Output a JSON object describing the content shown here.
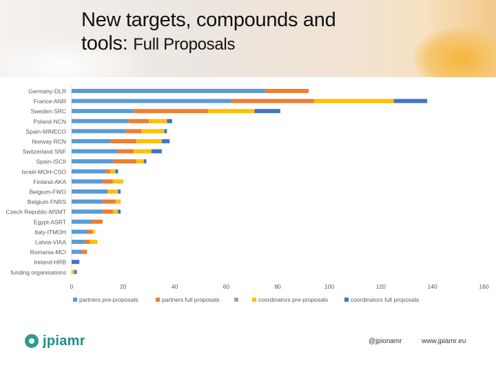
{
  "title_line1": "New targets, compounds and",
  "title_line2a": "tools: ",
  "title_line2b": "Full Proposals",
  "footer": {
    "logo_text": "jpiamr",
    "handle": "@jpionamr",
    "url": "www.jpiamr.eu"
  },
  "colors": {
    "partners_pre": "#5b9bd5",
    "partners_full": "#ed7d31",
    "blank": "#a5a5a5",
    "coord_pre": "#ffc000",
    "coord_full": "#4472c4"
  },
  "chart_data": {
    "type": "bar",
    "orientation": "horizontal",
    "stacked": true,
    "categories": [
      "Germany-DLR",
      "France-ANR",
      "Sweden-SRC",
      "Poland-NCN",
      "Spain-MINECO",
      "Norway RCN",
      "Switzerland SNF",
      "Spain-ISCII",
      "Israël-MOH-CSO",
      "Finland-AKA",
      "Belgium-FWO",
      "Belgium FNRS",
      "Czech Republic-MSMT",
      "Egypt-ASRT",
      "Italy-ITMOH",
      "Latvia-VIAA",
      "Romania-MCI",
      "Ireland-HRB",
      "funding organisations"
    ],
    "series": [
      {
        "name": "partners pre-proposals",
        "values": [
          75,
          62,
          24,
          22,
          21,
          15,
          18,
          16,
          13,
          12,
          14,
          12,
          12,
          8,
          6,
          5,
          4,
          0,
          0
        ]
      },
      {
        "name": "partners full proposals",
        "values": [
          17,
          32,
          29,
          8,
          6,
          10,
          6,
          9,
          2,
          4,
          0,
          5,
          4,
          4,
          2,
          2,
          2,
          0,
          0
        ]
      },
      {
        "name": "",
        "values": [
          0,
          0,
          0,
          0,
          0,
          0,
          0,
          0,
          0,
          0,
          0,
          0,
          0,
          0,
          0,
          0,
          0,
          0,
          0
        ]
      },
      {
        "name": "coordinators pre-proposals",
        "values": [
          0,
          31,
          18,
          7,
          9,
          10,
          7,
          3,
          2,
          4,
          4,
          2,
          2,
          0,
          1,
          3,
          0,
          0,
          1
        ]
      },
      {
        "name": "coordinators full proposals",
        "values": [
          0,
          13,
          10,
          2,
          1,
          3,
          4,
          1,
          1,
          0,
          1,
          0,
          1,
          0,
          0,
          0,
          0,
          3,
          1
        ]
      }
    ],
    "xticks": [
      "0",
      "20",
      "40",
      "60",
      "80",
      "100",
      "120",
      "140",
      "160"
    ],
    "xlim": [
      0,
      160
    ],
    "grid": false,
    "legend": "bottom"
  }
}
